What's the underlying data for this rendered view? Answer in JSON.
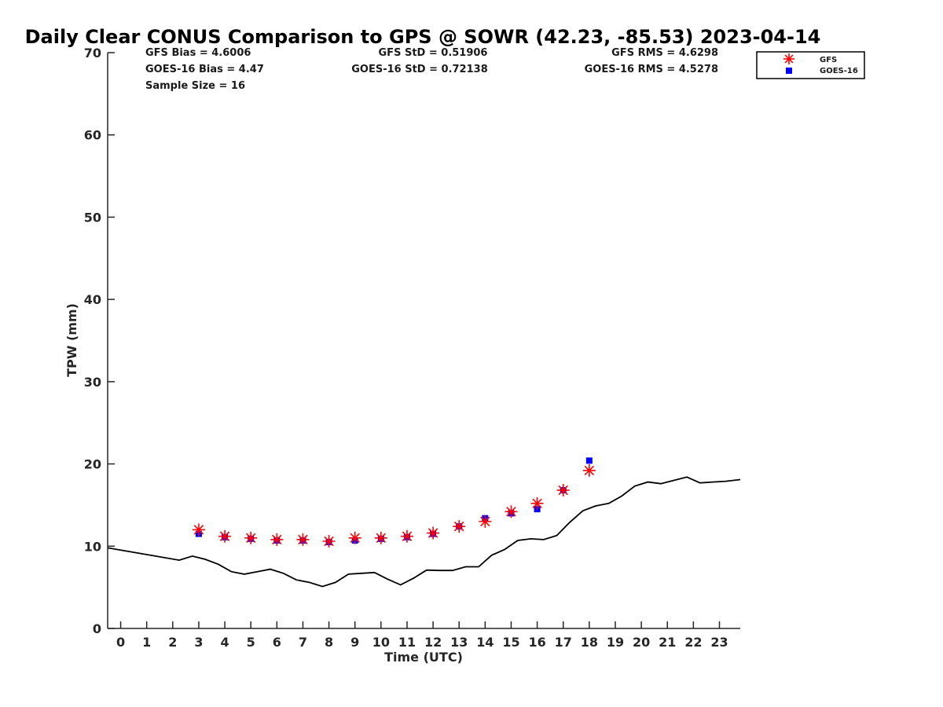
{
  "chart_data": {
    "type": "line",
    "title": "Daily Clear CONUS Comparison to GPS @ SOWR (42.23, -85.53) 2023-04-14",
    "xlabel": "Time (UTC)",
    "ylabel": "TPW (mm)",
    "xlim": [
      -0.5,
      23.8
    ],
    "ylim": [
      0,
      70
    ],
    "xticks": [
      0,
      1,
      2,
      3,
      4,
      5,
      6,
      7,
      8,
      9,
      10,
      11,
      12,
      13,
      14,
      15,
      16,
      17,
      18,
      19,
      20,
      21,
      22,
      23
    ],
    "yticks": [
      0,
      10,
      20,
      30,
      40,
      50,
      60,
      70
    ],
    "grid": false,
    "stats": {
      "gfs_bias": "GFS Bias = 4.6006",
      "goes_bias": "GOES-16 Bias = 4.47",
      "sample_size": "Sample Size = 16",
      "gfs_std": "GFS StD = 0.51906",
      "goes_std": "GOES-16 StD = 0.72138",
      "gfs_rms": "GFS RMS = 4.6298",
      "goes_rms": "GOES-16 RMS = 4.5278"
    },
    "legend": {
      "position": "top-right-outside",
      "entries": [
        {
          "name": "GFS",
          "marker": "asterisk",
          "color": "#ff0000"
        },
        {
          "name": "GOES-16",
          "marker": "square",
          "color": "#0000ff"
        }
      ]
    },
    "series": [
      {
        "name": "GPS",
        "style": "line",
        "color": "#000000",
        "x": [
          -0.5,
          2.25,
          2.75,
          3.25,
          3.75,
          4.25,
          4.75,
          5.25,
          5.75,
          6.25,
          6.75,
          7.25,
          7.75,
          8.25,
          8.75,
          9.25,
          9.75,
          10.25,
          10.75,
          11.25,
          11.75,
          12.25,
          12.75,
          13.25,
          13.75,
          14.25,
          14.75,
          15.25,
          15.75,
          16.25,
          16.75,
          17.25,
          17.75,
          18.25,
          18.75,
          19.25,
          19.75,
          20.25,
          20.75,
          21.25,
          21.75,
          22.25,
          22.75,
          23.25,
          23.8
        ],
        "y": [
          9.8,
          8.3,
          8.8,
          8.4,
          7.8,
          6.9,
          6.6,
          6.9,
          7.2,
          6.7,
          5.9,
          5.6,
          5.1,
          5.6,
          6.6,
          6.7,
          6.8,
          6.0,
          5.3,
          6.1,
          7.1,
          7.05,
          7.05,
          7.5,
          7.5,
          8.9,
          9.6,
          10.7,
          10.9,
          10.8,
          11.3,
          12.9,
          14.3,
          14.9,
          15.2,
          16.1,
          17.3,
          17.8,
          17.6,
          18.0,
          18.4,
          17.7,
          17.8,
          17.9,
          18.1
        ]
      },
      {
        "name": "GFS",
        "style": "marker",
        "marker": "asterisk",
        "color": "#ff0000",
        "x": [
          3,
          4,
          5,
          6,
          7,
          8,
          9,
          10,
          11,
          12,
          13,
          14,
          15,
          16,
          17,
          18
        ],
        "y": [
          12.0,
          11.2,
          11.0,
          10.8,
          10.8,
          10.6,
          11.0,
          11.0,
          11.2,
          11.6,
          12.4,
          13.0,
          14.2,
          15.2,
          16.8,
          19.2
        ]
      },
      {
        "name": "GOES-16",
        "style": "marker",
        "marker": "square",
        "color": "#0000ff",
        "x": [
          3,
          4,
          5,
          6,
          7,
          8,
          9,
          10,
          11,
          12,
          13,
          14,
          15,
          16,
          17,
          18
        ],
        "y": [
          11.5,
          11.1,
          10.9,
          10.7,
          10.7,
          10.5,
          10.7,
          10.9,
          11.1,
          11.5,
          12.4,
          13.4,
          14.0,
          14.5,
          16.8,
          20.4
        ]
      }
    ]
  }
}
